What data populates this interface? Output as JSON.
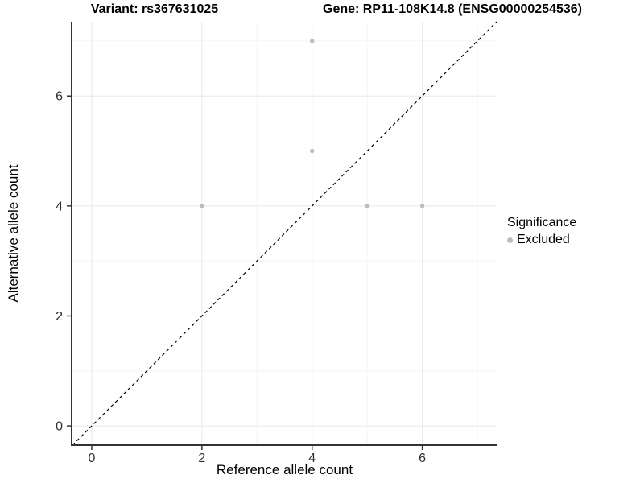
{
  "chart_data": {
    "type": "scatter",
    "title_left": "Variant: rs367631025",
    "title_right": "Gene: RP11-108K14.8 (ENSG00000254536)",
    "xlabel": "Reference allele count",
    "ylabel": "Alternative allele count",
    "xlim": [
      -0.35,
      7.35
    ],
    "ylim": [
      -0.35,
      7.35
    ],
    "x_ticks": [
      0,
      2,
      4,
      6
    ],
    "y_ticks": [
      0,
      2,
      4,
      6
    ],
    "x_minor_gridlines": [
      1,
      3,
      5,
      7
    ],
    "y_minor_gridlines": [
      1,
      3,
      5,
      7
    ],
    "grid": "on",
    "identity_line": {
      "equation": "y = x",
      "style": "dashed",
      "color": "#000000"
    },
    "series": [
      {
        "name": "Excluded",
        "color": "#bdbdbd",
        "points": [
          {
            "x": 2,
            "y": 4
          },
          {
            "x": 4,
            "y": 5
          },
          {
            "x": 4,
            "y": 7
          },
          {
            "x": 5,
            "y": 4
          },
          {
            "x": 6,
            "y": 4
          }
        ]
      }
    ],
    "legend": {
      "title": "Significance",
      "position": "right",
      "entries": [
        {
          "label": "Excluded",
          "color": "#bdbdbd"
        }
      ]
    }
  },
  "style_colors": {
    "background": "#ffffff",
    "axis_line": "#333333",
    "tick_mark": "#333333",
    "tick_label": "#2e2e2e",
    "grid_major": "#e8e8e8",
    "grid_minor": "#f4f4f4",
    "point_fill": "#bdbdbd"
  }
}
